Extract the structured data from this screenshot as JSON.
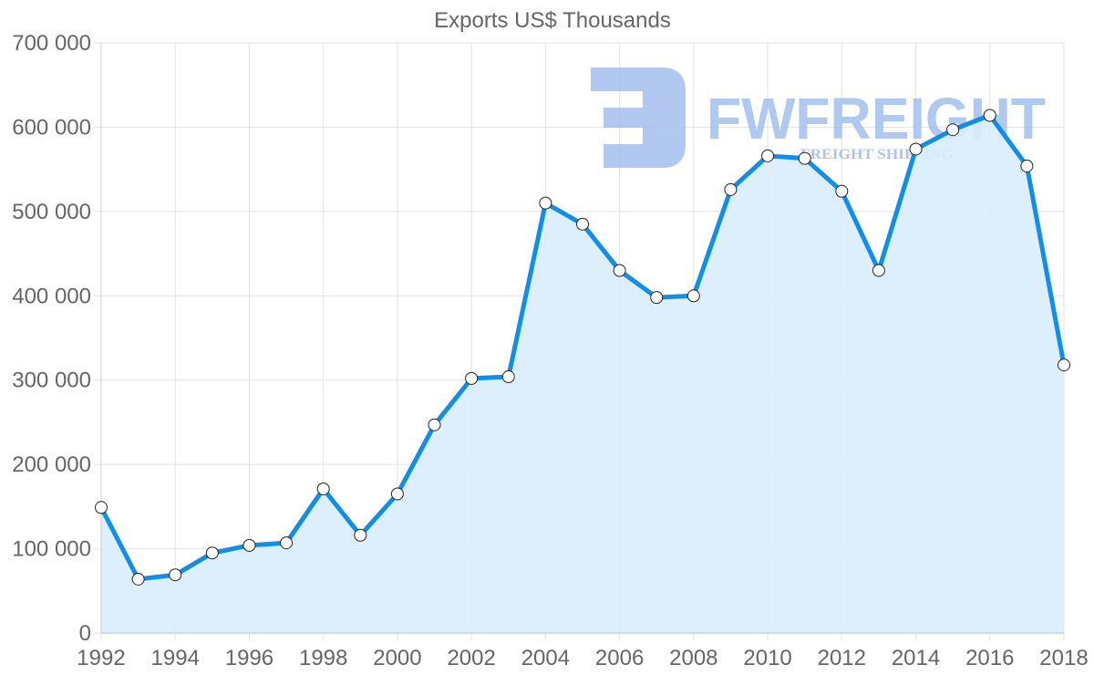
{
  "chart_data": {
    "type": "area",
    "title": "Exports US$ Thousands",
    "xlabel": "",
    "ylabel": "",
    "x": [
      1992,
      1993,
      1994,
      1995,
      1996,
      1997,
      1998,
      1999,
      2000,
      2001,
      2002,
      2003,
      2004,
      2005,
      2006,
      2007,
      2008,
      2009,
      2010,
      2011,
      2012,
      2013,
      2014,
      2015,
      2016,
      2017,
      2018
    ],
    "series": [
      {
        "name": "Exports US$ Thousands",
        "values": [
          149000,
          64000,
          69000,
          95000,
          104000,
          107000,
          171000,
          116000,
          165000,
          247000,
          302000,
          304000,
          510000,
          485000,
          430000,
          398000,
          400000,
          526000,
          566000,
          563000,
          524000,
          430000,
          574000,
          597000,
          614000,
          554000,
          318000
        ],
        "color": "#118ee9",
        "fill": "#d9ecfc"
      }
    ],
    "ylim": [
      0,
      700000
    ],
    "y_ticks": [
      0,
      100000,
      200000,
      300000,
      400000,
      500000,
      600000,
      700000
    ],
    "y_tick_labels": [
      "0",
      "100 000",
      "200 000",
      "300 000",
      "400 000",
      "500 000",
      "600 000",
      "700 000"
    ],
    "x_ticks": [
      1992,
      1994,
      1996,
      1998,
      2000,
      2002,
      2004,
      2006,
      2008,
      2010,
      2012,
      2014,
      2016,
      2018
    ],
    "x_tick_labels": [
      "1992",
      "1994",
      "1996",
      "1998",
      "2000",
      "2002",
      "2004",
      "2006",
      "2008",
      "2010",
      "2012",
      "2014",
      "2016",
      "2018"
    ],
    "grid": true,
    "legend": "none",
    "markers": "circle-white"
  },
  "watermark": {
    "brand": "FWFREIGHT",
    "tagline": "FREIGHT SHIPPING",
    "color": "#9dbcee"
  },
  "colors": {
    "line": "#118ee9",
    "fill": "#d9ecfc",
    "grid": "#e2e2e2",
    "text": "#666666"
  }
}
